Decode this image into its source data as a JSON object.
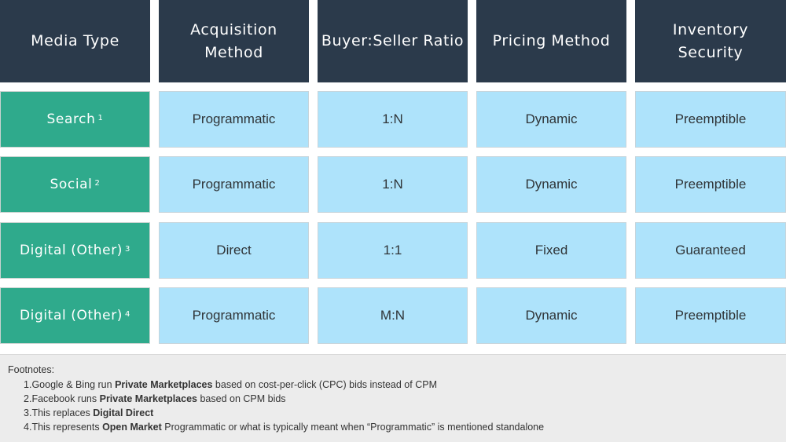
{
  "table": {
    "headers": [
      {
        "l1": "Media Type",
        "l2": ""
      },
      {
        "l1": "Acquisition",
        "l2": "Method"
      },
      {
        "l1": "Buyer:Seller Ratio",
        "l2": ""
      },
      {
        "l1": "Pricing Method",
        "l2": ""
      },
      {
        "l1": "Inventory",
        "l2": "Security"
      }
    ],
    "rows": [
      {
        "label": "Search",
        "sup": "1",
        "acquisition": "Programmatic",
        "ratio": "1:N",
        "pricing": "Dynamic",
        "security": "Preemptible"
      },
      {
        "label": "Social",
        "sup": "2",
        "acquisition": "Programmatic",
        "ratio": "1:N",
        "pricing": "Dynamic",
        "security": "Preemptible"
      },
      {
        "label": "Digital (Other)",
        "sup": "3",
        "acquisition": "Direct",
        "ratio": "1:1",
        "pricing": "Fixed",
        "security": "Guaranteed"
      },
      {
        "label": "Digital (Other)",
        "sup": "4",
        "acquisition": "Programmatic",
        "ratio": "M:N",
        "pricing": "Dynamic",
        "security": "Preemptible"
      }
    ]
  },
  "footnotes": {
    "title": "Footnotes:",
    "items": [
      {
        "num": "1.",
        "pre": "Google & Bing run ",
        "bold": "Private Marketplaces",
        "post": " based on cost-per-click (CPC) bids instead of CPM"
      },
      {
        "num": "2.",
        "pre": "Facebook runs ",
        "bold": "Private Marketplaces",
        "post": " based on CPM bids"
      },
      {
        "num": "3.",
        "pre": "This replaces ",
        "bold": "Digital Direct",
        "post": ""
      },
      {
        "num": "4.",
        "pre": "This represents ",
        "bold": "Open Market",
        "post": " Programmatic or what is typically meant when “Programmatic” is mentioned standalone"
      }
    ]
  },
  "colors": {
    "header_bg": "#2b3a4b",
    "label_bg": "#2faa8c",
    "cell_bg": "#aee3fb",
    "footnote_bg": "#ececec"
  }
}
